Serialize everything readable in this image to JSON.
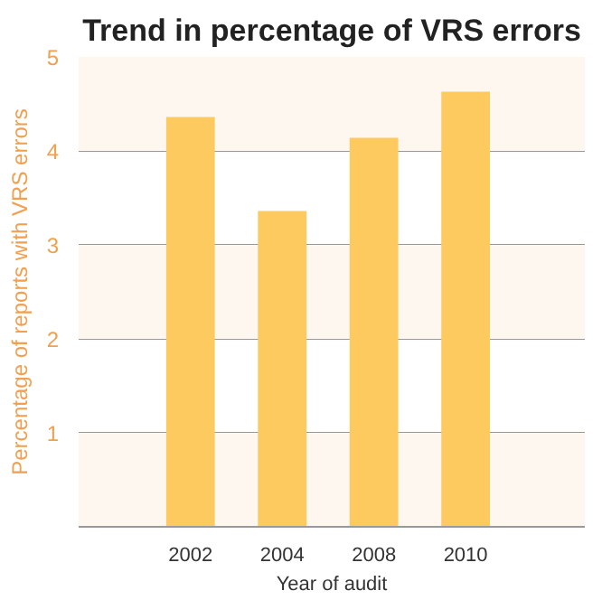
{
  "chart_data": {
    "type": "bar",
    "title": "Trend in percentage of VRS errors",
    "xlabel": "Year of audit",
    "ylabel": "Percentage of reports with VRS errors",
    "categories": [
      "2002",
      "2004",
      "2008",
      "2010"
    ],
    "values": [
      4.36,
      3.36,
      4.14,
      4.63
    ],
    "color": "#fdca5f",
    "ylim": [
      0,
      5
    ],
    "yticks": [
      1,
      2,
      3,
      4,
      5
    ],
    "grid": "y",
    "bands": [
      {
        "axis": "y",
        "from": 0,
        "to": 1,
        "color": "#fdf7ef"
      },
      {
        "axis": "y",
        "from": 2,
        "to": 3,
        "color": "#fdf7ef"
      },
      {
        "axis": "y",
        "from": 4,
        "to": 5,
        "color": "#fdf7ef"
      }
    ]
  }
}
